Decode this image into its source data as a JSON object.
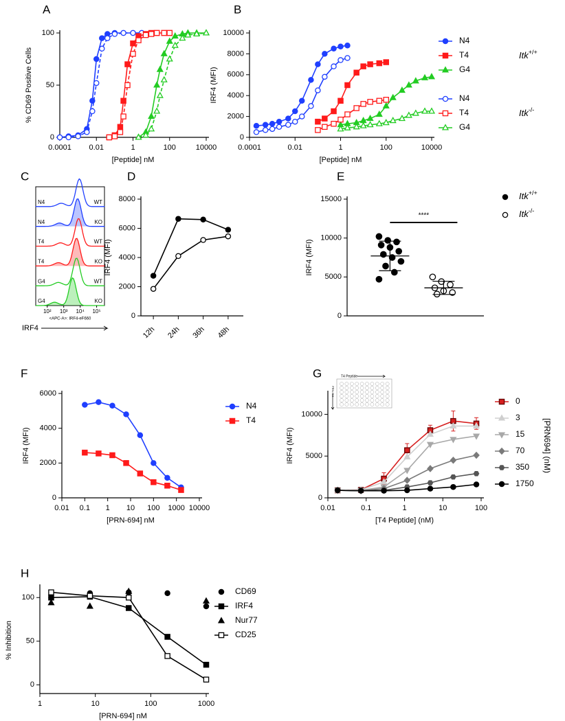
{
  "chart_data": [
    {
      "type": "line",
      "panel": "A",
      "xlabel": "[Peptide] nM",
      "ylabel": "% CD69 Positive Cells",
      "xscale": "log",
      "xlim": [
        0.0001,
        10000
      ],
      "xticks": [
        0.0001,
        0.01,
        1,
        100,
        10000
      ],
      "ylim": [
        0,
        100
      ],
      "yticks": [
        0,
        50,
        100
      ],
      "series": [
        {
          "color": "#1f3fff",
          "marker": "circle",
          "filled": true,
          "x": [
            0.0001,
            0.0003,
            0.001,
            0.003,
            0.006,
            0.01,
            0.02,
            0.04,
            0.1,
            0.3,
            1,
            3
          ],
          "values": [
            0,
            1,
            2,
            8,
            35,
            75,
            95,
            99,
            100,
            100,
            100,
            100
          ]
        },
        {
          "color": "#1f3fff",
          "marker": "circle",
          "filled": false,
          "dashed": true,
          "x": [
            0.0001,
            0.0003,
            0.001,
            0.003,
            0.006,
            0.01,
            0.02,
            0.04,
            0.1,
            0.3,
            1,
            3
          ],
          "values": [
            0,
            0,
            1,
            5,
            25,
            52,
            85,
            95,
            99,
            100,
            100,
            100
          ]
        },
        {
          "color": "#ff1a1a",
          "marker": "square",
          "filled": true,
          "x": [
            0.05,
            0.1,
            0.2,
            0.3,
            0.5,
            1,
            2,
            5,
            10,
            20,
            50,
            100
          ],
          "values": [
            0,
            2,
            10,
            35,
            70,
            90,
            97,
            99,
            100,
            100,
            100,
            100
          ]
        },
        {
          "color": "#ff1a1a",
          "marker": "square",
          "filled": false,
          "dashed": true,
          "x": [
            0.05,
            0.1,
            0.2,
            0.3,
            0.5,
            1,
            2,
            5,
            10,
            20,
            50,
            100
          ],
          "values": [
            0,
            1,
            5,
            20,
            50,
            80,
            93,
            98,
            99,
            100,
            100,
            100
          ]
        },
        {
          "color": "#22cc22",
          "marker": "triangle",
          "filled": true,
          "x": [
            2,
            5,
            10,
            20,
            30,
            50,
            100,
            200,
            500,
            1000,
            3000,
            10000
          ],
          "values": [
            0,
            5,
            20,
            50,
            65,
            80,
            92,
            97,
            99,
            100,
            100,
            100
          ]
        },
        {
          "color": "#22cc22",
          "marker": "triangle",
          "filled": false,
          "dashed": true,
          "x": [
            2,
            5,
            10,
            20,
            30,
            50,
            100,
            200,
            500,
            1000,
            3000,
            10000
          ],
          "values": [
            0,
            2,
            8,
            25,
            40,
            55,
            75,
            88,
            95,
            98,
            99,
            100
          ]
        }
      ]
    },
    {
      "type": "line",
      "panel": "B",
      "xlabel": "[Peptide] nM",
      "ylabel": "IRF4 (MFI)",
      "xscale": "log",
      "xlim": [
        0.0001,
        10000
      ],
      "xticks": [
        0.0001,
        0.01,
        1,
        100,
        10000
      ],
      "ylim": [
        0,
        10000
      ],
      "yticks": [
        0,
        2000,
        4000,
        6000,
        8000,
        10000
      ],
      "legend": true,
      "legend_groups": [
        {
          "label": "Itk",
          "sup": "+/+"
        },
        {
          "label": "Itk",
          "sup": "-/-"
        }
      ],
      "series": [
        {
          "name": "N4",
          "color": "#1f3fff",
          "marker": "circle",
          "filled": true,
          "x": [
            0.0002,
            0.0005,
            0.001,
            0.002,
            0.005,
            0.01,
            0.02,
            0.05,
            0.1,
            0.2,
            0.5,
            1,
            2
          ],
          "values": [
            1100,
            1200,
            1300,
            1500,
            1800,
            2500,
            3500,
            5500,
            7000,
            8000,
            8500,
            8700,
            8800
          ]
        },
        {
          "name": "T4",
          "color": "#ff1a1a",
          "marker": "square",
          "filled": true,
          "x": [
            0.1,
            0.2,
            0.5,
            1,
            2,
            5,
            10,
            20,
            50,
            100
          ],
          "values": [
            1500,
            1800,
            2500,
            3500,
            5000,
            6200,
            6800,
            7000,
            7100,
            7200
          ]
        },
        {
          "name": "G4",
          "color": "#22cc22",
          "marker": "triangle",
          "filled": true,
          "x": [
            1,
            2,
            5,
            10,
            20,
            50,
            100,
            200,
            500,
            1000,
            2000,
            5000,
            10000
          ],
          "values": [
            1200,
            1300,
            1400,
            1600,
            1800,
            2200,
            3000,
            3800,
            4500,
            5000,
            5400,
            5700,
            5800
          ]
        },
        {
          "name": "N4",
          "color": "#1f3fff",
          "marker": "circle",
          "filled": false,
          "x": [
            0.0002,
            0.0005,
            0.001,
            0.002,
            0.005,
            0.01,
            0.02,
            0.05,
            0.1,
            0.2,
            0.5,
            1,
            2
          ],
          "values": [
            500,
            700,
            800,
            1000,
            1200,
            1500,
            2000,
            3000,
            4500,
            5800,
            6800,
            7400,
            7600
          ]
        },
        {
          "name": "T4",
          "color": "#ff1a1a",
          "marker": "square",
          "filled": false,
          "x": [
            0.1,
            0.2,
            0.5,
            1,
            2,
            5,
            10,
            20,
            50,
            100
          ],
          "values": [
            700,
            1000,
            1300,
            1700,
            2200,
            2800,
            3200,
            3400,
            3500,
            3600
          ]
        },
        {
          "name": "G4",
          "color": "#22cc22",
          "marker": "triangle",
          "filled": false,
          "x": [
            1,
            2,
            5,
            10,
            20,
            50,
            100,
            200,
            500,
            1000,
            2000,
            5000,
            10000
          ],
          "values": [
            800,
            900,
            1000,
            1100,
            1200,
            1300,
            1400,
            1600,
            1800,
            2100,
            2300,
            2500,
            2500
          ]
        }
      ]
    },
    {
      "type": "ridgeline",
      "panel": "C",
      "xlabel": "IRF4",
      "caption": "<APC-A>: IRF4-eF660",
      "xscale": "log",
      "xlim": [
        20,
        300000
      ],
      "xticks": [
        {
          "value": 100,
          "label": "10²"
        },
        {
          "value": 1000,
          "label": "10³"
        },
        {
          "value": 10000,
          "label": "10⁴"
        },
        {
          "value": 100000,
          "label": "10⁵"
        }
      ],
      "rows": [
        {
          "label": "N4",
          "genotype": "WT",
          "color": "#1f3fff",
          "filled": false,
          "peak": 9000
        },
        {
          "label": "N4",
          "genotype": "KO",
          "color": "#1f3fff",
          "filled": true,
          "peak": 7000
        },
        {
          "label": "T4",
          "genotype": "WT",
          "color": "#ff1a1a",
          "filled": false,
          "peak": 8000
        },
        {
          "label": "T4",
          "genotype": "KO",
          "color": "#ff1a1a",
          "filled": true,
          "peak": 6000
        },
        {
          "label": "G4",
          "genotype": "WT",
          "color": "#22cc22",
          "filled": false,
          "peak": 6000
        },
        {
          "label": "G4",
          "genotype": "KO",
          "color": "#22cc22",
          "filled": true,
          "peak": 3500
        }
      ]
    },
    {
      "type": "line",
      "panel": "D",
      "ylabel": "IRF4 (MFI)",
      "categories": [
        "12h",
        "24h",
        "36h",
        "48h"
      ],
      "ylim": [
        0,
        8000
      ],
      "yticks": [
        0,
        2000,
        4000,
        6000,
        8000
      ],
      "series": [
        {
          "color": "#000000",
          "marker": "circle",
          "filled": true,
          "values": [
            2750,
            6650,
            6600,
            5900
          ]
        },
        {
          "color": "#000000",
          "marker": "circle",
          "filled": false,
          "values": [
            1850,
            4100,
            5200,
            5450
          ]
        }
      ]
    },
    {
      "type": "dot",
      "panel": "E",
      "ylabel": "IRF4 (MFI)",
      "ylim": [
        0,
        15000
      ],
      "yticks": [
        0,
        5000,
        10000,
        15000
      ],
      "legend": true,
      "significance": {
        "label": "****",
        "y": 12000
      },
      "series": [
        {
          "name": "Itk",
          "name_sup": "+/+",
          "color": "#000000",
          "marker": "circle",
          "filled": true,
          "values": [
            10200,
            9700,
            9500,
            9100,
            8800,
            8300,
            7900,
            7500,
            7000,
            6400,
            5600,
            4700
          ],
          "mean": 7700,
          "error": 1900
        },
        {
          "name": "Itk",
          "name_sup": "-/-",
          "color": "#000000",
          "marker": "circle",
          "filled": false,
          "values": [
            5000,
            4400,
            4000,
            3600,
            3200,
            3000,
            2800
          ],
          "mean": 3600,
          "error": 850
        }
      ]
    },
    {
      "type": "line",
      "panel": "F",
      "xlabel": "[PRN-694] nM",
      "ylabel": "IRF4 (MFI)",
      "xscale": "log",
      "xlim": [
        0.01,
        10000
      ],
      "xticks": [
        0.01,
        0.1,
        1,
        10,
        100,
        1000,
        10000
      ],
      "ylim": [
        0,
        6000
      ],
      "yticks": [
        0,
        2000,
        4000,
        6000
      ],
      "legend": true,
      "x": [
        0.1,
        0.4,
        1.6,
        6.4,
        26,
        100,
        400,
        1600
      ],
      "series": [
        {
          "name": "N4",
          "color": "#1f3fff",
          "marker": "circle",
          "filled": true,
          "values": [
            5350,
            5500,
            5300,
            4800,
            3600,
            2000,
            1150,
            600
          ]
        },
        {
          "name": "T4",
          "color": "#ff1a1a",
          "marker": "square",
          "filled": true,
          "values": [
            2600,
            2550,
            2450,
            2000,
            1400,
            900,
            700,
            450
          ]
        }
      ]
    },
    {
      "type": "line",
      "panel": "G",
      "xlabel": "[T4 Peptide] (nM)",
      "ylabel": "IRF4 (MFI)",
      "legend_title": "[PRN694] (nM)",
      "inset_labels": [
        "T4 Peptide",
        "PRN-694"
      ],
      "xscale": "log",
      "xlim": [
        0.01,
        100
      ],
      "xticks": [
        0.01,
        0.1,
        1,
        10,
        100
      ],
      "ylim": [
        0,
        12500
      ],
      "yticks": [
        0,
        5000,
        10000
      ],
      "legend": true,
      "x": [
        0.018,
        0.073,
        0.29,
        1.17,
        4.7,
        18.7,
        75
      ],
      "series": [
        {
          "name": "0",
          "color": "#d62020",
          "marker": "square",
          "filled": true,
          "values": [
            900,
            950,
            2300,
            5700,
            8100,
            9200,
            8900
          ],
          "errors": [
            200,
            200,
            700,
            800,
            600,
            1200,
            700
          ]
        },
        {
          "name": "3",
          "color": "#cfcfcf",
          "marker": "triangle",
          "filled": true,
          "values": [
            900,
            950,
            1900,
            4900,
            7600,
            8600,
            8600
          ]
        },
        {
          "name": "15",
          "color": "#a8a8a8",
          "marker": "triangle-down",
          "filled": true,
          "values": [
            900,
            900,
            1300,
            3300,
            6400,
            7000,
            7400
          ]
        },
        {
          "name": "70",
          "color": "#7a7a7a",
          "marker": "diamond",
          "filled": true,
          "values": [
            900,
            850,
            1100,
            2100,
            3500,
            4500,
            5100
          ]
        },
        {
          "name": "350",
          "color": "#555555",
          "marker": "hexagon",
          "filled": true,
          "values": [
            900,
            850,
            900,
            1300,
            1800,
            2500,
            2900
          ]
        },
        {
          "name": "1750",
          "color": "#000000",
          "marker": "circle",
          "filled": true,
          "values": [
            900,
            850,
            850,
            900,
            1100,
            1300,
            1600
          ]
        }
      ]
    },
    {
      "type": "line",
      "panel": "H",
      "xlabel": "[PRN-694] nM",
      "ylabel": "% Inhibition",
      "xscale": "log",
      "xlim": [
        1,
        1000
      ],
      "xticks": [
        1,
        10,
        100,
        1000
      ],
      "ylim": [
        -10,
        112
      ],
      "yticks": [
        0,
        50,
        100
      ],
      "legend": true,
      "x": [
        1.6,
        8,
        40,
        200,
        1000
      ],
      "series": [
        {
          "name": "CD69",
          "color": "#000000",
          "marker": "circle",
          "filled": true,
          "line": false,
          "values": [
            100,
            105,
            106,
            105,
            90
          ]
        },
        {
          "name": "IRF4",
          "color": "#000000",
          "marker": "square",
          "filled": true,
          "values": [
            100,
            101,
            88,
            55,
            23
          ]
        },
        {
          "name": "Nur77",
          "color": "#000000",
          "marker": "triangle",
          "filled": true,
          "line": false,
          "values": [
            94,
            90,
            107,
            null,
            96
          ]
        },
        {
          "name": "CD25",
          "color": "#000000",
          "marker": "square",
          "filled": false,
          "values": [
            106,
            102,
            100,
            33,
            6
          ]
        }
      ]
    }
  ]
}
